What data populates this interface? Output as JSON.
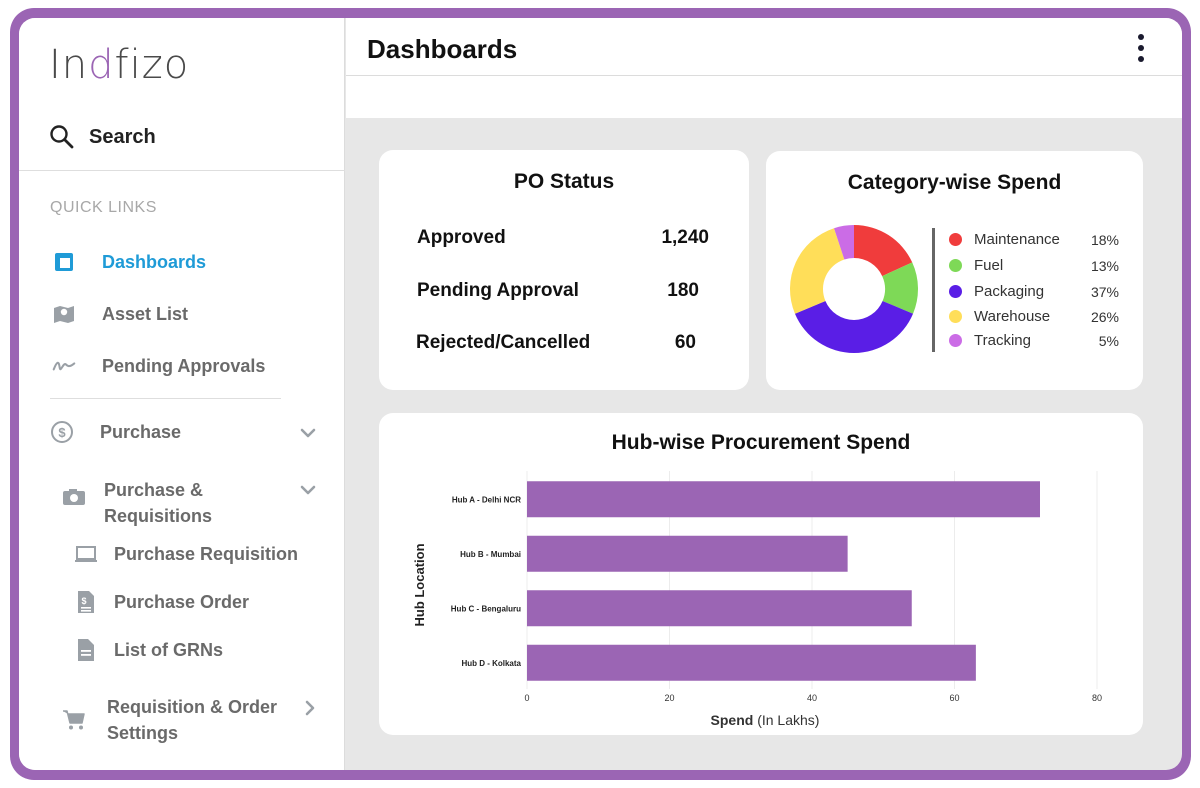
{
  "logo": {
    "text_before": "In",
    "text_mark": "d",
    "text_after": "fizo"
  },
  "sidebar": {
    "search_label": "Search",
    "quick_links_label": "QUICK LINKS",
    "items": [
      {
        "label": "Dashboards",
        "icon": "dashboard-icon"
      },
      {
        "label": "Asset List",
        "icon": "map-icon"
      },
      {
        "label": "Pending Approvals",
        "icon": "signature-icon"
      },
      {
        "label": "Purchase",
        "icon": "dollar-icon"
      },
      {
        "label": "Purchase & Requisitions",
        "icon": "camera-icon"
      },
      {
        "label": "Purchase Requisition",
        "icon": "laptop-icon"
      },
      {
        "label": "Purchase Order",
        "icon": "invoice-icon"
      },
      {
        "label": "List of GRNs",
        "icon": "file-icon"
      },
      {
        "label": "Requisition & Order Settings",
        "icon": "cart-icon"
      }
    ]
  },
  "header": {
    "title": "Dashboards"
  },
  "po_status": {
    "title": "PO Status",
    "rows": [
      {
        "label": "Approved",
        "value": "1,240"
      },
      {
        "label": "Pending Approval",
        "value": "180"
      },
      {
        "label": "Rejected/Cancelled",
        "value": "60"
      }
    ]
  },
  "category_spend": {
    "title": "Category-wise Spend",
    "colors": {
      "maintenance": "#f03c3c",
      "fuel": "#7ed957",
      "packaging": "#5a1ee6",
      "warehouse": "#ffde59",
      "tracking": "#cb6ce6"
    },
    "legend": [
      {
        "name": "Maintenance",
        "pct": "18%"
      },
      {
        "name": "Fuel",
        "pct": "13%"
      },
      {
        "name": "Packaging",
        "pct": "37%"
      },
      {
        "name": "Warehouse",
        "pct": "26%"
      },
      {
        "name": "Tracking",
        "pct": "5%"
      }
    ]
  },
  "chart_data": [
    {
      "type": "pie",
      "title": "Category-wise Spend",
      "categories": [
        "Maintenance",
        "Fuel",
        "Packaging",
        "Warehouse",
        "Tracking"
      ],
      "values": [
        18,
        13,
        37,
        26,
        5
      ],
      "colors": [
        "#f03c3c",
        "#7ed957",
        "#5a1ee6",
        "#ffde59",
        "#cb6ce6"
      ]
    },
    {
      "type": "bar",
      "orientation": "horizontal",
      "title": "Hub-wise Procurement Spend",
      "categories": [
        "Hub A - Delhi NCR",
        "Hub B - Mumbai",
        "Hub C - Bengaluru",
        "Hub D - Kolkata"
      ],
      "values": [
        72,
        45,
        54,
        63
      ],
      "xlabel_bold": "Spend",
      "xlabel_unit": "(In Lakhs)",
      "ylabel": "Hub Location",
      "xlim": [
        0,
        80
      ],
      "xticks": [
        0,
        20,
        40,
        60,
        80
      ],
      "bar_color": "#9b65b4"
    }
  ]
}
